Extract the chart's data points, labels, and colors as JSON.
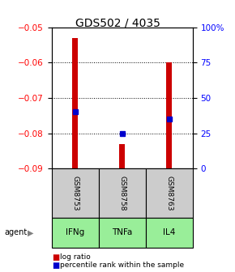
{
  "title": "GDS502 / 4035",
  "samples": [
    "GSM8753",
    "GSM8758",
    "GSM8763"
  ],
  "agents": [
    "IFNg",
    "TNFa",
    "IL4"
  ],
  "bar_tops": [
    -0.053,
    -0.083,
    -0.06
  ],
  "bar_bottom": -0.09,
  "percentile_values": [
    -0.074,
    -0.08,
    -0.076
  ],
  "ylim_left": [
    -0.09,
    -0.05
  ],
  "ylim_right": [
    0,
    100
  ],
  "yticks_left": [
    -0.09,
    -0.08,
    -0.07,
    -0.06,
    -0.05
  ],
  "yticks_right": [
    0,
    25,
    50,
    75,
    100
  ],
  "ytick_labels_right": [
    "0",
    "25",
    "50",
    "75",
    "100%"
  ],
  "bar_color": "#cc0000",
  "dot_color": "#0000cc",
  "agent_bg_color": "#99ee99",
  "sample_bg_color": "#cccccc",
  "background_color": "#ffffff",
  "title_fontsize": 10,
  "tick_fontsize": 7.5,
  "bar_width": 0.12
}
